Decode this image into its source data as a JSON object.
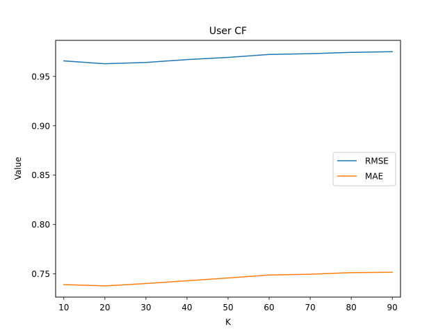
{
  "chart_data": {
    "type": "line",
    "title": "User CF",
    "xlabel": "K",
    "ylabel": "Value",
    "x": [
      10,
      20,
      30,
      40,
      50,
      60,
      70,
      80,
      90
    ],
    "xlim": [
      8,
      92
    ],
    "ylim": [
      0.7265,
      0.9865
    ],
    "xticks": [
      10,
      20,
      30,
      40,
      50,
      60,
      70,
      80,
      90
    ],
    "xtick_labels": [
      "10",
      "20",
      "30",
      "40",
      "50",
      "60",
      "70",
      "80",
      "90"
    ],
    "yticks": [
      0.75,
      0.8,
      0.85,
      0.9,
      0.95
    ],
    "ytick_labels": [
      "0.75",
      "0.80",
      "0.85",
      "0.90",
      "0.95"
    ],
    "grid": false,
    "legend_position": "center-right",
    "series": [
      {
        "name": "RMSE",
        "color": "#1f77b4",
        "values": [
          0.9657,
          0.9628,
          0.9641,
          0.967,
          0.9692,
          0.9722,
          0.973,
          0.9743,
          0.975
        ]
      },
      {
        "name": "MAE",
        "color": "#ff7f0e",
        "values": [
          0.7392,
          0.7379,
          0.7402,
          0.7431,
          0.7459,
          0.7489,
          0.7497,
          0.7513,
          0.7517
        ]
      }
    ]
  }
}
